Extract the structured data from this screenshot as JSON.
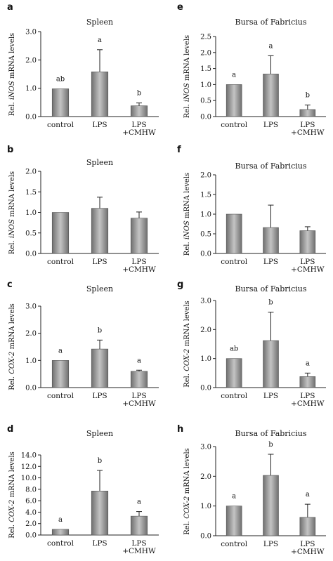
{
  "chart_data": [
    {
      "panel": "a",
      "type": "bar",
      "title": "Spleen",
      "ylabel_parts": [
        "Rel. ",
        "iNOS",
        " mRNA levels"
      ],
      "categories": [
        [
          "control"
        ],
        [
          "LPS"
        ],
        [
          "LPS",
          "+CMHW"
        ]
      ],
      "values": [
        0.98,
        1.58,
        0.38
      ],
      "errors": [
        0.0,
        0.78,
        0.1
      ],
      "labels": [
        "ab",
        "a",
        "b"
      ],
      "ylim": [
        0,
        3.0
      ],
      "yticks": [
        "0.0",
        "1.0",
        "2.0",
        "3.0"
      ]
    },
    {
      "panel": "b",
      "type": "bar",
      "title": "Spleen",
      "ylabel_parts": [
        "Rel. ",
        "iNOS",
        " mRNA levels"
      ],
      "categories": [
        [
          "control"
        ],
        [
          "LPS"
        ],
        [
          "LPS",
          "+CMHW"
        ]
      ],
      "values": [
        1.0,
        1.1,
        0.86
      ],
      "errors": [
        0.0,
        0.27,
        0.15
      ],
      "labels": [
        "",
        "",
        ""
      ],
      "ylim": [
        0,
        2.0
      ],
      "yticks": [
        "0.0",
        "0.5",
        "1.0",
        "1.5",
        "2.0"
      ]
    },
    {
      "panel": "c",
      "type": "bar",
      "title": "Spleen",
      "ylabel_parts": [
        "Rel. ",
        "COX-2",
        " mRNA levels"
      ],
      "categories": [
        [
          "control"
        ],
        [
          "LPS"
        ],
        [
          "LPS",
          "+CMHW"
        ]
      ],
      "values": [
        1.0,
        1.42,
        0.6
      ],
      "errors": [
        0.0,
        0.33,
        0.04
      ],
      "labels": [
        "a",
        "b",
        "a"
      ],
      "ylim": [
        0,
        3.0
      ],
      "yticks": [
        "0.0",
        "1.0",
        "2.0",
        "3.0"
      ]
    },
    {
      "panel": "d",
      "type": "bar",
      "title": "Spleen",
      "ylabel_parts": [
        "Rel. ",
        "COX-2",
        " mRNA levels"
      ],
      "categories": [
        [
          "control"
        ],
        [
          "LPS"
        ],
        [
          "LPS",
          "+CMHW"
        ]
      ],
      "values": [
        1.0,
        7.7,
        3.3
      ],
      "errors": [
        0.0,
        3.6,
        0.8
      ],
      "labels": [
        "a",
        "b",
        "a"
      ],
      "ylim": [
        0,
        14.0
      ],
      "yticks": [
        "0.0",
        "2.0",
        "4.0",
        "6.0",
        "8.0",
        "10.0",
        "12.0",
        "14.0"
      ]
    },
    {
      "panel": "e",
      "type": "bar",
      "title": "Bursa of Fabricius",
      "ylabel_parts": [
        "Rel. ",
        "iNOS",
        " mRNA levels"
      ],
      "categories": [
        [
          "control"
        ],
        [
          "LPS"
        ],
        [
          "LPS",
          "+CMHW"
        ]
      ],
      "values": [
        1.0,
        1.33,
        0.22
      ],
      "errors": [
        0.0,
        0.57,
        0.14
      ],
      "labels": [
        "a",
        "a",
        "b"
      ],
      "ylim": [
        0,
        2.5
      ],
      "yticks": [
        "0.0",
        "0.5",
        "1.0",
        "1.5",
        "2.0",
        "2.5"
      ]
    },
    {
      "panel": "f",
      "type": "bar",
      "title": "Bursa of Fabricius",
      "ylabel_parts": [
        "Rel. ",
        "iNOS",
        " mRNA levels"
      ],
      "categories": [
        [
          "control"
        ],
        [
          "LPS"
        ],
        [
          "LPS",
          "+CMHW"
        ]
      ],
      "values": [
        1.0,
        0.66,
        0.58
      ],
      "errors": [
        0.0,
        0.57,
        0.1
      ],
      "labels": [
        "",
        "",
        ""
      ],
      "ylim": [
        0,
        2.0
      ],
      "yticks": [
        "0.0",
        "0.5",
        "1.0",
        "1.5",
        "2.0"
      ]
    },
    {
      "panel": "g",
      "type": "bar",
      "title": "Bursa of Fabricius",
      "ylabel_parts": [
        "Rel. ",
        "COX-2",
        " mRNA levels"
      ],
      "categories": [
        [
          "control"
        ],
        [
          "LPS"
        ],
        [
          "LPS",
          "+CMHW"
        ]
      ],
      "values": [
        1.0,
        1.62,
        0.38
      ],
      "errors": [
        0.0,
        0.98,
        0.12
      ],
      "labels": [
        "ab",
        "b",
        "a"
      ],
      "ylim": [
        0,
        3.0
      ],
      "yticks": [
        "0.0",
        "1.0",
        "2.0",
        "3.0"
      ]
    },
    {
      "panel": "h",
      "type": "bar",
      "title": "Bursa of Fabricius",
      "ylabel_parts": [
        "Rel. ",
        "COX-2",
        " mRNA levels"
      ],
      "categories": [
        [
          "control"
        ],
        [
          "LPS"
        ],
        [
          "LPS",
          "+CMHW"
        ]
      ],
      "values": [
        1.0,
        2.03,
        0.62
      ],
      "errors": [
        0.0,
        0.71,
        0.44
      ],
      "labels": [
        "a",
        "b",
        "a"
      ],
      "ylim": [
        0,
        3.0
      ],
      "yticks": [
        "0.0",
        "1.0",
        "2.0",
        "3.0"
      ]
    }
  ],
  "colors": {
    "bar_fill_dark": "#6f6f6f",
    "bar_fill_light": "#bdbdbd",
    "axis": "#222222",
    "background": "#ffffff"
  }
}
